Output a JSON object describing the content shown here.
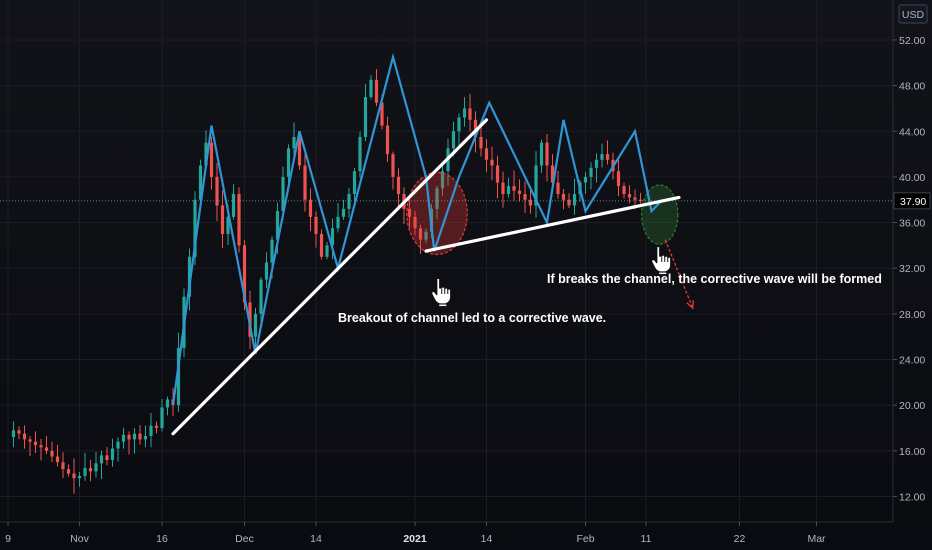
{
  "chart_data": {
    "type": "candlestick",
    "currency_badge": "USD",
    "last_price_label": "37.90",
    "last_price": 37.9,
    "ylim": [
      9.5,
      55.5
    ],
    "y_ticks": [
      "12.00",
      "16.00",
      "20.00",
      "24.00",
      "28.00",
      "32.00",
      "36.00",
      "40.00",
      "44.00",
      "48.00",
      "52.00"
    ],
    "y_tick_values": [
      12,
      16,
      20,
      24,
      28,
      32,
      36,
      40,
      44,
      48,
      52
    ],
    "x_ticks": [
      {
        "label": "9",
        "day": 0,
        "bold": false
      },
      {
        "label": "Nov",
        "day": 13,
        "bold": false
      },
      {
        "label": "16",
        "day": 28,
        "bold": false
      },
      {
        "label": "Dec",
        "day": 43,
        "bold": false
      },
      {
        "label": "14",
        "day": 56,
        "bold": false
      },
      {
        "label": "2021",
        "day": 74,
        "bold": true
      },
      {
        "label": "14",
        "day": 87,
        "bold": false
      },
      {
        "label": "Feb",
        "day": 105,
        "bold": false
      },
      {
        "label": "11",
        "day": 116,
        "bold": false
      },
      {
        "label": "22",
        "day": 133,
        "bold": false
      },
      {
        "label": "Mar",
        "day": 147,
        "bold": false
      }
    ],
    "zigzag_wave": [
      [
        30,
        20
      ],
      [
        37,
        44.5
      ],
      [
        45,
        24.5
      ],
      [
        53,
        44
      ],
      [
        60,
        32
      ],
      [
        70,
        50.5
      ],
      [
        76,
        40
      ],
      [
        77.5,
        33.5
      ],
      [
        82,
        40
      ],
      [
        87.5,
        46.5
      ],
      [
        98,
        36
      ],
      [
        101,
        45
      ],
      [
        105,
        37
      ],
      [
        114,
        44
      ],
      [
        117,
        37
      ],
      [
        119,
        38
      ]
    ],
    "trendlines": [
      {
        "from": [
          30,
          17.5
        ],
        "to": [
          87,
          45
        ]
      },
      {
        "from": [
          76,
          33.5
        ],
        "to": [
          122,
          38.2
        ]
      }
    ],
    "highlights": [
      {
        "center": [
          78,
          36.8
        ],
        "radii_days_price": [
          5.5,
          3.6
        ],
        "color": "#e53935"
      },
      {
        "center": [
          118.5,
          36.7
        ],
        "radii_days_price": [
          3.3,
          2.6
        ],
        "color": "#2e7d32"
      }
    ],
    "forecast_arrow": {
      "from": [
        119.5,
        34.5
      ],
      "to": [
        124.5,
        28.5
      ]
    },
    "pointer_icons": [
      {
        "at": [
          78.5,
          30.0
        ]
      },
      {
        "at": [
          118.5,
          32.8
        ]
      }
    ],
    "annotations": [
      {
        "text": "Breakout of channel led to a corrective wave.",
        "at": [
          60,
          27.3
        ]
      },
      {
        "text": "If breaks the channel, the corrective wave will be formed",
        "at": [
          98,
          30.7
        ]
      }
    ],
    "series_close": [
      17.2,
      17.8,
      17.5,
      17.0,
      16.8,
      16.5,
      16.3,
      16.0,
      15.5,
      15.0,
      14.4,
      14.0,
      13.6,
      13.8,
      14.5,
      14.2,
      14.9,
      15.6,
      15.2,
      16.2,
      16.8,
      17.4,
      17.0,
      17.5,
      17.0,
      17.3,
      18.2,
      18.0,
      19.8,
      20.5,
      20.0,
      25.0,
      29.5,
      33.0,
      38.0,
      41.0,
      43.0,
      40.0,
      37.5,
      35.0,
      36.5,
      38.5,
      34.0,
      29.0,
      26.0,
      28.0,
      31.0,
      32.5,
      34.5,
      37.0,
      40.0,
      42.5,
      43.5,
      41.0,
      38.0,
      36.5,
      35.0,
      33.0,
      34.0,
      35.5,
      36.5,
      37.2,
      38.5,
      40.5,
      43.5,
      47.0,
      48.5,
      46.5,
      44.5,
      42.0,
      40.0,
      38.5,
      37.2,
      36.5,
      35.5,
      34.5,
      35.2,
      37.2,
      39.0,
      40.5,
      42.5,
      44.0,
      45.2,
      46.0,
      45.0,
      43.5,
      42.5,
      41.5,
      41.0,
      39.5,
      38.5,
      39.2,
      38.8,
      38.5,
      38.0,
      37.5,
      41.0,
      43.0,
      41.0,
      39.5,
      38.5,
      38.0,
      37.5,
      38.5,
      39.5,
      40.0,
      40.8,
      41.5,
      42.0,
      41.5,
      40.5,
      39.2,
      38.5,
      38.2,
      38.0,
      37.9
    ]
  }
}
